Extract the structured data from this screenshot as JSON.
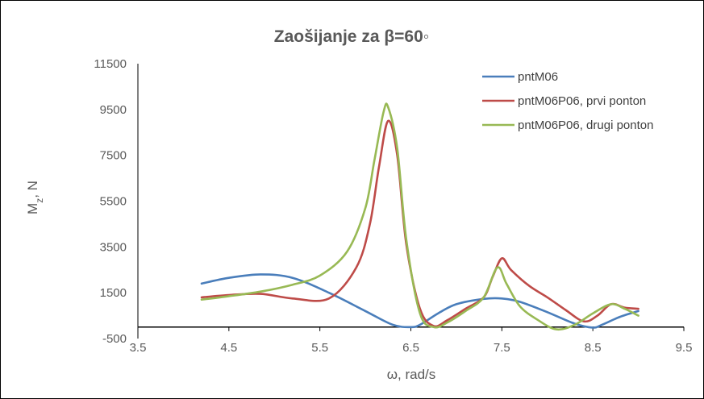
{
  "chart_data": {
    "type": "line",
    "title": "Zaošijanje za β=60◦",
    "xlabel": "ω, rad/s",
    "ylabel": {
      "main": "M",
      "sub": "z",
      "suffix": ", N"
    },
    "xlim": [
      3.5,
      9.5
    ],
    "ylim": [
      -500,
      11500
    ],
    "xticks": [
      3.5,
      4.5,
      5.5,
      6.5,
      7.5,
      8.5,
      9.5
    ],
    "xtick_labels": [
      "3.5",
      "4.5",
      "5.5",
      "6.5",
      "7.5",
      "8.5",
      "9.5"
    ],
    "yticks": [
      -500,
      1500,
      3500,
      5500,
      7500,
      9500,
      11500
    ],
    "ytick_labels": [
      "-500",
      "1500",
      "3500",
      "5500",
      "7500",
      "9500",
      "11500"
    ],
    "grid": false,
    "legend_position": "top-right",
    "series": [
      {
        "name": "pntM06",
        "color": "#4a7ebb",
        "x": [
          4.2,
          4.5,
          4.85,
          5.2,
          5.6,
          6.0,
          6.3,
          6.5,
          6.6,
          6.8,
          7.0,
          7.3,
          7.5,
          7.7,
          8.0,
          8.3,
          8.5,
          8.6,
          8.8,
          9.0
        ],
        "y": [
          1900,
          2150,
          2300,
          2150,
          1500,
          700,
          100,
          0,
          100,
          600,
          1000,
          1230,
          1250,
          1100,
          650,
          150,
          -20,
          100,
          450,
          700
        ]
      },
      {
        "name": "pntM06P06, prvi ponton",
        "color": "#be4b48",
        "x": [
          4.2,
          4.5,
          4.85,
          5.2,
          5.6,
          5.9,
          6.05,
          6.15,
          6.25,
          6.35,
          6.45,
          6.6,
          6.75,
          6.9,
          7.1,
          7.3,
          7.4,
          7.5,
          7.6,
          7.8,
          8.0,
          8.2,
          8.4,
          8.55,
          8.7,
          8.85,
          9.0
        ],
        "y": [
          1300,
          1400,
          1450,
          1250,
          1250,
          2600,
          4500,
          7000,
          9000,
          7500,
          3600,
          800,
          50,
          300,
          800,
          1300,
          2200,
          3000,
          2500,
          1800,
          1300,
          750,
          250,
          500,
          1000,
          850,
          800
        ]
      },
      {
        "name": "pntM06P06, drugi ponton",
        "color": "#98b954",
        "x": [
          4.2,
          4.5,
          4.85,
          5.2,
          5.5,
          5.8,
          6.0,
          6.1,
          6.2,
          6.25,
          6.35,
          6.45,
          6.6,
          6.75,
          6.9,
          7.1,
          7.3,
          7.45,
          7.55,
          7.7,
          7.9,
          8.1,
          8.3,
          8.5,
          8.7,
          8.85,
          9.0
        ],
        "y": [
          1200,
          1350,
          1550,
          1850,
          2250,
          3300,
          5200,
          7300,
          9400,
          9600,
          7800,
          3800,
          600,
          0,
          200,
          700,
          1300,
          2600,
          1900,
          900,
          300,
          -100,
          100,
          600,
          1000,
          800,
          500
        ]
      }
    ]
  }
}
